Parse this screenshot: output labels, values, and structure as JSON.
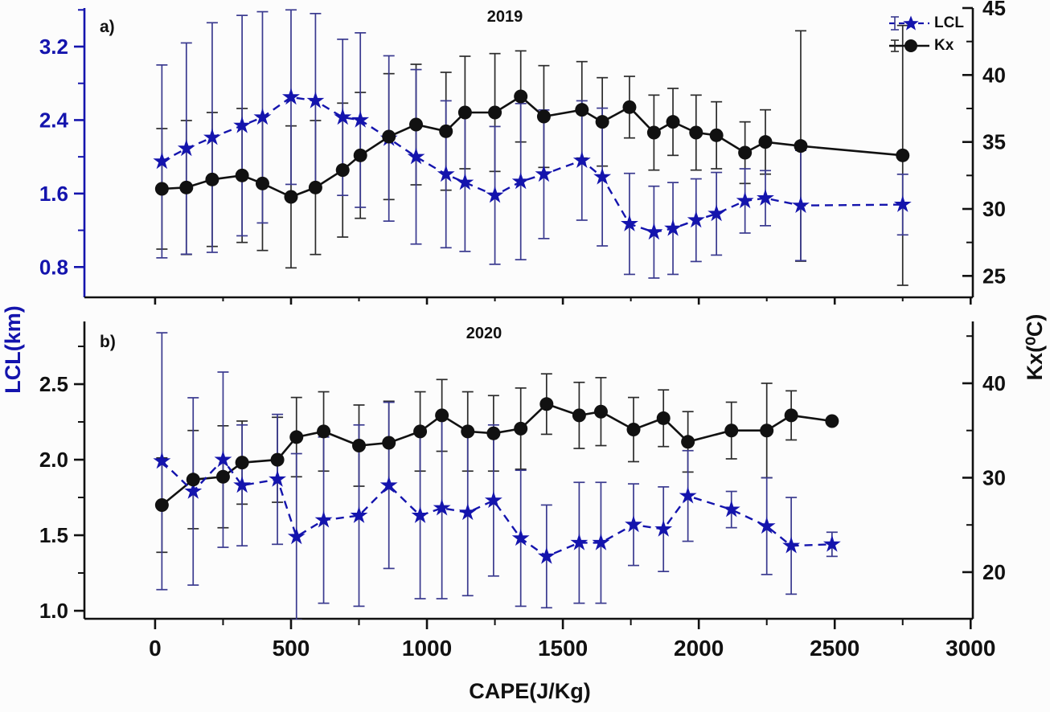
{
  "legend": {
    "items": [
      {
        "label": "LCL",
        "marker": "star",
        "line": "dashed",
        "color": "#1414ad"
      },
      {
        "label": "Kx",
        "marker": "circle",
        "line": "solid",
        "color": "#111111"
      }
    ]
  },
  "chart_data": [
    {
      "panel": "a",
      "panel_label": "a)",
      "title": "2019",
      "type": "line",
      "x_label": "CAPE(J/Kg)",
      "y_left_label": "LCL(km)",
      "y_right_label": "Kx(⁰C)",
      "x_range": [
        -260,
        3008
      ],
      "x_ticks": [
        "0",
        "500",
        "1000",
        "1500",
        "2000",
        "2500",
        "3000"
      ],
      "x_tick_values": [
        0,
        500,
        1000,
        1500,
        2000,
        2500,
        3000
      ],
      "x_minor_values": [
        250,
        750,
        1250,
        1750,
        2250,
        2750
      ],
      "show_x_labels": false,
      "left_range": [
        0.47,
        3.62
      ],
      "left_ticks": [
        "0.8",
        "1.6",
        "2.4",
        "3.2"
      ],
      "left_tick_values": [
        0.8,
        1.6,
        2.4,
        3.2
      ],
      "left_minor_values": [
        1.2,
        2.0,
        2.8,
        3.6
      ],
      "left_axis_color": "#1414ad",
      "left_label_color": "#1414ad",
      "right_range": [
        23.4,
        45.0
      ],
      "right_ticks": [
        "25",
        "30",
        "35",
        "40",
        "45"
      ],
      "right_tick_values": [
        25,
        30,
        35,
        40,
        45
      ],
      "right_minor_values": [
        27.5,
        32.5,
        37.5,
        42.5
      ],
      "series": [
        {
          "name": "LCL",
          "axis": "left",
          "marker": "star",
          "line": "dashed",
          "color": "#1414ad",
          "err_color": "#3a3a8f",
          "x": [
            25,
            115,
            210,
            320,
            395,
            500,
            590,
            690,
            755,
            860,
            960,
            1070,
            1140,
            1250,
            1345,
            1430,
            1570,
            1645,
            1745,
            1835,
            1905,
            1990,
            2065,
            2170,
            2245,
            2375,
            2750
          ],
          "y": [
            1.95,
            2.09,
            2.21,
            2.34,
            2.43,
            2.65,
            2.61,
            2.43,
            2.4,
            2.2,
            2.0,
            1.81,
            1.72,
            1.58,
            1.73,
            1.81,
            1.96,
            1.78,
            1.27,
            1.18,
            1.22,
            1.31,
            1.38,
            1.52,
            1.55,
            1.47,
            1.48
          ],
          "err": [
            1.05,
            1.15,
            1.25,
            1.2,
            1.15,
            0.95,
            0.95,
            0.85,
            0.95,
            0.9,
            0.95,
            0.8,
            0.75,
            0.75,
            0.85,
            0.7,
            0.65,
            0.75,
            0.55,
            0.5,
            0.5,
            0.45,
            0.45,
            0.35,
            0.3,
            0.6,
            0.33
          ]
        },
        {
          "name": "Kx",
          "axis": "right",
          "marker": "circle",
          "line": "solid",
          "color": "#111111",
          "err_color": "#2b2b2b",
          "x": [
            25,
            115,
            210,
            320,
            395,
            500,
            590,
            690,
            755,
            860,
            960,
            1070,
            1140,
            1250,
            1345,
            1430,
            1570,
            1645,
            1745,
            1835,
            1905,
            1990,
            2065,
            2170,
            2245,
            2375,
            2750
          ],
          "y": [
            31.5,
            31.6,
            32.2,
            32.5,
            31.9,
            30.9,
            31.6,
            32.9,
            34.0,
            35.4,
            36.3,
            35.8,
            37.2,
            37.2,
            38.4,
            36.9,
            37.4,
            36.5,
            37.6,
            35.7,
            36.5,
            35.7,
            35.5,
            34.2,
            35.0,
            34.7,
            34.0
          ],
          "err": [
            4.5,
            5.0,
            5.0,
            5.0,
            5.0,
            5.3,
            5.0,
            5.0,
            4.7,
            4.7,
            4.5,
            4.4,
            4.2,
            4.4,
            3.4,
            3.8,
            3.6,
            3.3,
            2.3,
            2.8,
            2.5,
            2.8,
            2.5,
            2.3,
            2.4,
            8.6,
            9.7
          ]
        }
      ]
    },
    {
      "panel": "b",
      "panel_label": "b)",
      "title": "2020",
      "type": "line",
      "x_label": "CAPE(J/Kg)",
      "y_left_label": "LCL(km)",
      "y_right_label": "Kx(⁰C)",
      "x_range": [
        -260,
        3008
      ],
      "x_ticks": [
        "0",
        "500",
        "1000",
        "1500",
        "2000",
        "2500",
        "3000"
      ],
      "x_tick_values": [
        0,
        500,
        1000,
        1500,
        2000,
        2500,
        3000
      ],
      "x_minor_values": [
        250,
        750,
        1250,
        1750,
        2250,
        2750
      ],
      "show_x_labels": true,
      "left_range": [
        0.947,
        2.915
      ],
      "left_ticks": [
        "1.0",
        "1.5",
        "2.0",
        "2.5"
      ],
      "left_tick_values": [
        1.0,
        1.5,
        2.0,
        2.5
      ],
      "left_minor_values": [
        1.25,
        1.75,
        2.25,
        2.75
      ],
      "left_axis_color": "#111111",
      "left_label_color": "#111111",
      "right_range": [
        15.06,
        46.55
      ],
      "right_ticks": [
        "20",
        "30",
        "40"
      ],
      "right_tick_values": [
        20,
        30,
        40
      ],
      "right_minor_values": [
        25,
        35,
        45
      ],
      "series": [
        {
          "name": "LCL",
          "axis": "left",
          "marker": "star",
          "line": "dashed",
          "color": "#1414ad",
          "err_color": "#3a3a8f",
          "x": [
            25,
            140,
            250,
            320,
            450,
            520,
            620,
            750,
            860,
            975,
            1055,
            1150,
            1245,
            1345,
            1440,
            1560,
            1640,
            1760,
            1870,
            1960,
            2120,
            2250,
            2340,
            2490
          ],
          "y": [
            1.99,
            1.79,
            2.0,
            1.83,
            1.87,
            1.49,
            1.6,
            1.63,
            1.83,
            1.63,
            1.68,
            1.65,
            1.73,
            1.48,
            1.36,
            1.45,
            1.45,
            1.57,
            1.54,
            1.76,
            1.67,
            1.56,
            1.43,
            1.44
          ],
          "err": [
            0.85,
            0.62,
            0.58,
            0.4,
            0.43,
            0.55,
            0.55,
            0.6,
            0.55,
            0.55,
            0.6,
            0.55,
            0.5,
            0.45,
            0.34,
            0.4,
            0.4,
            0.27,
            0.28,
            0.3,
            0.12,
            0.32,
            0.32,
            0.08
          ]
        },
        {
          "name": "Kx",
          "axis": "right",
          "marker": "circle",
          "line": "solid",
          "color": "#111111",
          "err_color": "#2b2b2b",
          "x": [
            25,
            140,
            250,
            320,
            450,
            520,
            620,
            750,
            860,
            975,
            1055,
            1150,
            1245,
            1345,
            1440,
            1560,
            1640,
            1760,
            1870,
            1960,
            2120,
            2250,
            2340,
            2490
          ],
          "y": [
            27.1,
            29.8,
            30.1,
            31.6,
            31.9,
            34.3,
            34.9,
            33.4,
            33.7,
            34.9,
            36.6,
            34.9,
            34.7,
            35.2,
            37.8,
            36.6,
            37.0,
            35.1,
            36.3,
            33.8,
            35.0,
            35.0,
            36.6,
            36.0
          ],
          "err": [
            5.0,
            5.2,
            5.4,
            4.4,
            4.5,
            4.2,
            4.2,
            4.3,
            4.4,
            4.2,
            3.8,
            4.2,
            4.0,
            4.3,
            3.2,
            3.5,
            3.6,
            3.4,
            3.0,
            3.2,
            3.0,
            5.0,
            2.6,
            0.3
          ]
        }
      ]
    }
  ]
}
